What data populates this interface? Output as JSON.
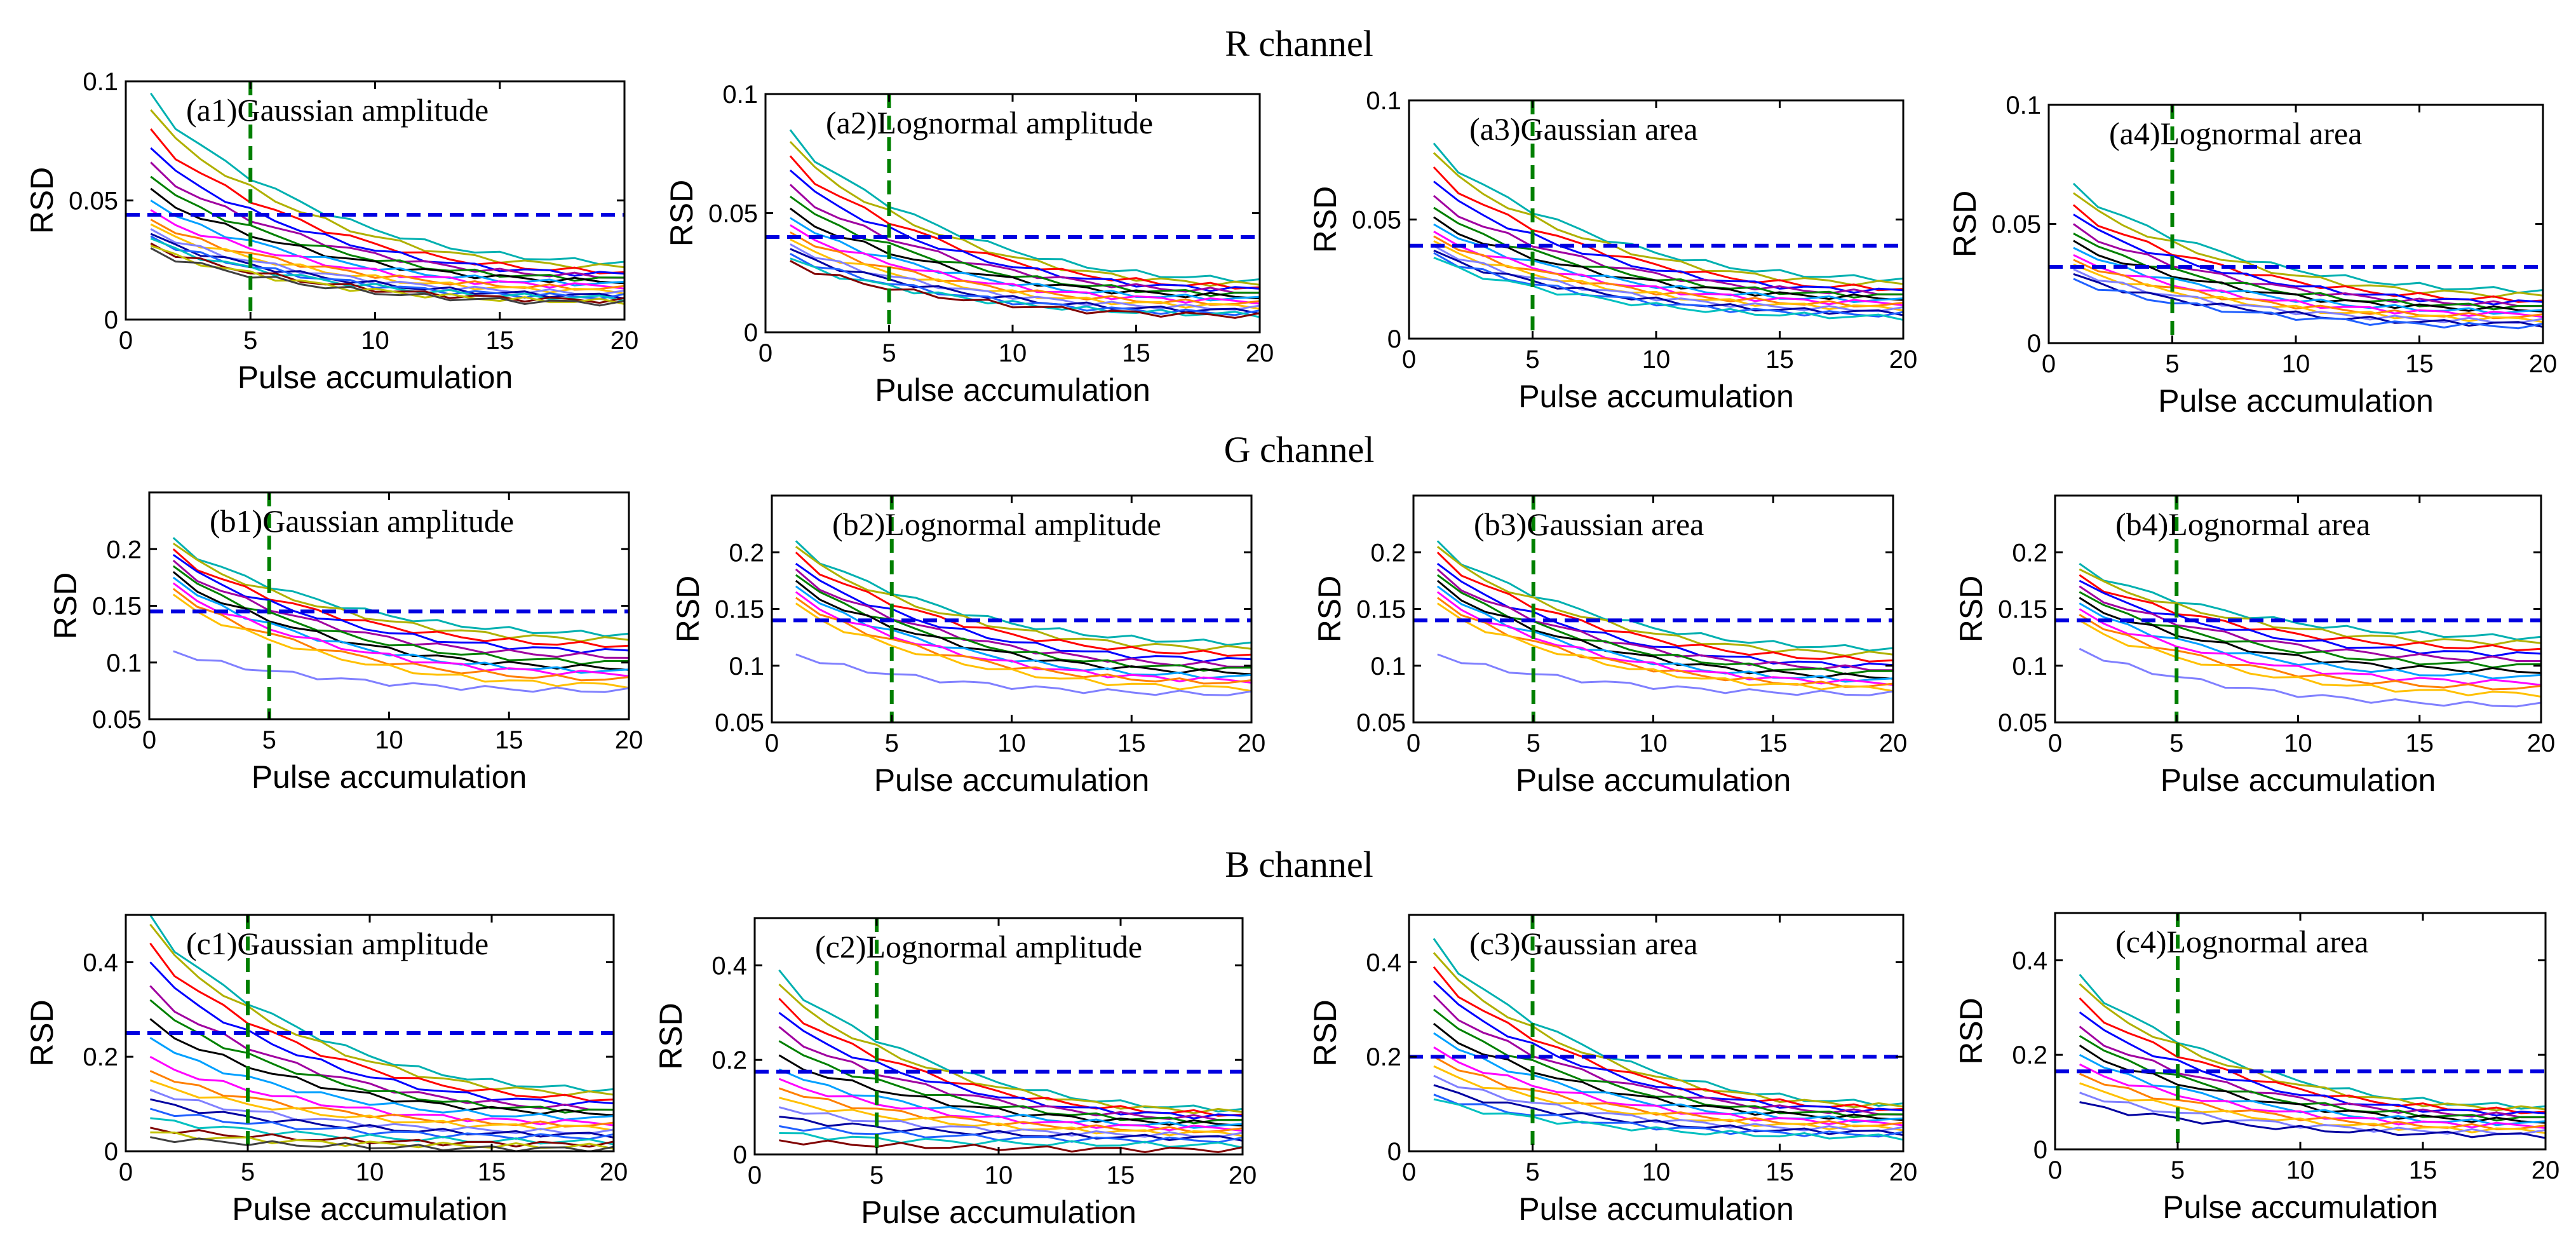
{
  "row_titles": [
    "R channel",
    "G channel",
    "B channel"
  ],
  "chart_data": [
    {
      "type": "line",
      "panel": "a1",
      "label": "(a1)Gaussian amplitude",
      "xlabel": "Pulse accumulation",
      "ylabel": "RSD",
      "xlim": [
        0,
        20
      ],
      "ylim": [
        0,
        0.1
      ],
      "xticks": [
        0,
        5,
        10,
        15,
        20
      ],
      "yticks": [
        0,
        0.05,
        0.1
      ],
      "ytick_labels": [
        "0",
        "0.05",
        "0.1"
      ],
      "threshold_y": 0.044,
      "vline_x": 5,
      "series_start": [
        0.095,
        0.088,
        0.08,
        0.072,
        0.066,
        0.06,
        0.055,
        0.05,
        0.046,
        0.042,
        0.04,
        0.038,
        0.036,
        0.035,
        0.034,
        0.032,
        0.031,
        0.03
      ],
      "series_end": [
        0.024,
        0.022,
        0.02,
        0.019,
        0.018,
        0.017,
        0.016,
        0.015,
        0.014,
        0.013,
        0.012,
        0.011,
        0.01,
        0.0095,
        0.009,
        0.008,
        0.0075,
        0.007
      ]
    },
    {
      "type": "line",
      "panel": "a2",
      "label": "(a2)Lognormal amplitude",
      "xlabel": "Pulse accumulation",
      "ylabel": "RSD",
      "xlim": [
        0,
        20
      ],
      "ylim": [
        0,
        0.1
      ],
      "xticks": [
        0,
        5,
        10,
        15,
        20
      ],
      "yticks": [
        0,
        0.05,
        0.1
      ],
      "ytick_labels": [
        "0",
        "0.05",
        "0.1"
      ],
      "threshold_y": 0.04,
      "vline_x": 5,
      "series_start": [
        0.085,
        0.08,
        0.074,
        0.068,
        0.062,
        0.057,
        0.052,
        0.048,
        0.045,
        0.042,
        0.039,
        0.037,
        0.035,
        0.033,
        0.031,
        0.03
      ],
      "series_end": [
        0.022,
        0.02,
        0.019,
        0.018,
        0.017,
        0.016,
        0.015,
        0.014,
        0.013,
        0.012,
        0.011,
        0.01,
        0.009,
        0.008,
        0.0075,
        0.007
      ]
    },
    {
      "type": "line",
      "panel": "a3",
      "label": "(a3)Gaussian area",
      "xlabel": "Pulse accumulation",
      "ylabel": "RSD",
      "xlim": [
        0,
        20
      ],
      "ylim": [
        0,
        0.1
      ],
      "xticks": [
        0,
        5,
        10,
        15,
        20
      ],
      "yticks": [
        0,
        0.05,
        0.1
      ],
      "ytick_labels": [
        "0",
        "0.05",
        "0.1"
      ],
      "threshold_y": 0.039,
      "vline_x": 5,
      "series_start": [
        0.082,
        0.078,
        0.072,
        0.066,
        0.06,
        0.055,
        0.051,
        0.048,
        0.045,
        0.043,
        0.041,
        0.039,
        0.037,
        0.036,
        0.034
      ],
      "series_end": [
        0.025,
        0.023,
        0.021,
        0.02,
        0.019,
        0.018,
        0.017,
        0.016,
        0.015,
        0.014,
        0.013,
        0.012,
        0.011,
        0.01,
        0.009
      ]
    },
    {
      "type": "line",
      "panel": "a4",
      "label": "(a4)Lognormal area",
      "xlabel": "Pulse accumulation",
      "ylabel": "RSD",
      "xlim": [
        0,
        20
      ],
      "ylim": [
        0,
        0.1
      ],
      "xticks": [
        0,
        5,
        10,
        15,
        20
      ],
      "yticks": [
        0,
        0.05,
        0.1
      ],
      "ytick_labels": [
        "0",
        "0.05",
        "0.1"
      ],
      "threshold_y": 0.032,
      "vline_x": 5,
      "series_start": [
        0.067,
        0.063,
        0.058,
        0.054,
        0.05,
        0.046,
        0.043,
        0.04,
        0.037,
        0.035,
        0.033,
        0.031,
        0.029,
        0.027
      ],
      "series_end": [
        0.022,
        0.02,
        0.018,
        0.017,
        0.016,
        0.015,
        0.014,
        0.013,
        0.012,
        0.011,
        0.01,
        0.009,
        0.008,
        0.007
      ]
    },
    {
      "type": "line",
      "panel": "b1",
      "label": "(b1)Gaussian amplitude",
      "xlabel": "Pulse accumulation",
      "ylabel": "RSD",
      "xlim": [
        0,
        20
      ],
      "ylim": [
        0.05,
        0.25
      ],
      "xticks": [
        0,
        5,
        10,
        15,
        20
      ],
      "yticks": [
        0.05,
        0.1,
        0.15,
        0.2
      ],
      "ytick_labels": [
        "0.05",
        "0.1",
        "0.15",
        "0.2"
      ],
      "threshold_y": 0.145,
      "vline_x": 5,
      "series_start": [
        0.21,
        0.205,
        0.2,
        0.195,
        0.19,
        0.185,
        0.18,
        0.175,
        0.17,
        0.165,
        0.16,
        0.11
      ],
      "series_end": [
        0.125,
        0.12,
        0.115,
        0.11,
        0.105,
        0.1,
        0.095,
        0.092,
        0.09,
        0.085,
        0.08,
        0.075
      ]
    },
    {
      "type": "line",
      "panel": "b2",
      "label": "(b2)Lognormal amplitude",
      "xlabel": "Pulse accumulation",
      "ylabel": "RSD",
      "xlim": [
        0,
        20
      ],
      "ylim": [
        0.05,
        0.25
      ],
      "xticks": [
        0,
        5,
        10,
        15,
        20
      ],
      "yticks": [
        0.05,
        0.1,
        0.15,
        0.2
      ],
      "ytick_labels": [
        "0.05",
        "0.1",
        "0.15",
        "0.2"
      ],
      "threshold_y": 0.14,
      "vline_x": 5,
      "series_start": [
        0.21,
        0.205,
        0.2,
        0.19,
        0.185,
        0.18,
        0.175,
        0.17,
        0.165,
        0.16,
        0.155,
        0.11
      ],
      "series_end": [
        0.12,
        0.115,
        0.11,
        0.105,
        0.1,
        0.097,
        0.094,
        0.09,
        0.087,
        0.085,
        0.08,
        0.075
      ]
    },
    {
      "type": "line",
      "panel": "b3",
      "label": "(b3)Gaussian area",
      "xlabel": "Pulse accumulation",
      "ylabel": "RSD",
      "xlim": [
        0,
        20
      ],
      "ylim": [
        0.05,
        0.25
      ],
      "xticks": [
        0,
        5,
        10,
        15,
        20
      ],
      "yticks": [
        0.05,
        0.1,
        0.15,
        0.2
      ],
      "ytick_labels": [
        "0.05",
        "0.1",
        "0.15",
        "0.2"
      ],
      "threshold_y": 0.14,
      "vline_x": 5,
      "series_start": [
        0.21,
        0.205,
        0.2,
        0.19,
        0.185,
        0.18,
        0.175,
        0.17,
        0.165,
        0.16,
        0.155,
        0.11
      ],
      "series_end": [
        0.115,
        0.11,
        0.105,
        0.1,
        0.097,
        0.094,
        0.09,
        0.087,
        0.085,
        0.082,
        0.08,
        0.075
      ]
    },
    {
      "type": "line",
      "panel": "b4",
      "label": "(b4)Lognormal area",
      "xlabel": "Pulse accumulation",
      "ylabel": "RSD",
      "xlim": [
        0,
        20
      ],
      "ylim": [
        0.05,
        0.25
      ],
      "xticks": [
        0,
        5,
        10,
        15,
        20
      ],
      "yticks": [
        0.05,
        0.1,
        0.15,
        0.2
      ],
      "ytick_labels": [
        "0.05",
        "0.1",
        "0.15",
        "0.2"
      ],
      "threshold_y": 0.14,
      "vline_x": 5,
      "series_start": [
        0.19,
        0.185,
        0.18,
        0.175,
        0.17,
        0.165,
        0.16,
        0.155,
        0.15,
        0.145,
        0.14,
        0.115
      ],
      "series_end": [
        0.125,
        0.12,
        0.115,
        0.11,
        0.105,
        0.1,
        0.095,
        0.09,
        0.085,
        0.08,
        0.075,
        0.065
      ]
    },
    {
      "type": "line",
      "panel": "c1",
      "label": "(c1)Gaussian amplitude",
      "xlabel": "Pulse accumulation",
      "ylabel": "RSD",
      "xlim": [
        0,
        20
      ],
      "ylim": [
        0,
        0.5
      ],
      "xticks": [
        0,
        5,
        10,
        15,
        20
      ],
      "yticks": [
        0,
        0.2,
        0.4
      ],
      "ytick_labels": [
        "0",
        "0.2",
        "0.4"
      ],
      "threshold_y": 0.25,
      "vline_x": 5,
      "series_start": [
        0.5,
        0.48,
        0.44,
        0.4,
        0.35,
        0.32,
        0.28,
        0.24,
        0.2,
        0.17,
        0.15,
        0.13,
        0.11,
        0.09,
        0.07,
        0.05,
        0.04,
        0.03
      ],
      "series_end": [
        0.13,
        0.12,
        0.11,
        0.1,
        0.09,
        0.085,
        0.08,
        0.07,
        0.06,
        0.055,
        0.05,
        0.04,
        0.035,
        0.03,
        0.02,
        0.015,
        0.01,
        0.005
      ]
    },
    {
      "type": "line",
      "panel": "c2",
      "label": "(c2)Lognormal amplitude",
      "xlabel": "Pulse accumulation",
      "ylabel": "RSD",
      "xlim": [
        0,
        20
      ],
      "ylim": [
        0,
        0.5
      ],
      "xticks": [
        0,
        5,
        10,
        15,
        20
      ],
      "yticks": [
        0,
        0.2,
        0.4
      ],
      "ytick_labels": [
        "0",
        "0.2",
        "0.4"
      ],
      "threshold_y": 0.175,
      "vline_x": 5,
      "series_start": [
        0.39,
        0.36,
        0.33,
        0.3,
        0.27,
        0.24,
        0.21,
        0.18,
        0.16,
        0.14,
        0.12,
        0.1,
        0.08,
        0.06,
        0.045,
        0.03
      ],
      "series_end": [
        0.095,
        0.09,
        0.085,
        0.08,
        0.075,
        0.07,
        0.065,
        0.06,
        0.055,
        0.05,
        0.045,
        0.04,
        0.035,
        0.03,
        0.02,
        0.01
      ]
    },
    {
      "type": "line",
      "panel": "c3",
      "label": "(c3)Gaussian area",
      "xlabel": "Pulse accumulation",
      "ylabel": "RSD",
      "xlim": [
        0,
        20
      ],
      "ylim": [
        0,
        0.5
      ],
      "xticks": [
        0,
        5,
        10,
        15,
        20
      ],
      "yticks": [
        0,
        0.2,
        0.4
      ],
      "ytick_labels": [
        "0",
        "0.2",
        "0.4"
      ],
      "threshold_y": 0.2,
      "vline_x": 5,
      "series_start": [
        0.45,
        0.42,
        0.39,
        0.36,
        0.33,
        0.3,
        0.27,
        0.25,
        0.22,
        0.2,
        0.18,
        0.16,
        0.14,
        0.12,
        0.11
      ],
      "series_end": [
        0.1,
        0.095,
        0.09,
        0.085,
        0.08,
        0.075,
        0.07,
        0.065,
        0.06,
        0.055,
        0.05,
        0.045,
        0.04,
        0.035,
        0.03
      ]
    },
    {
      "type": "line",
      "panel": "c4",
      "label": "(c4)Lognormal area",
      "xlabel": "Pulse accumulation",
      "ylabel": "RSD",
      "xlim": [
        0,
        20
      ],
      "ylim": [
        0,
        0.5
      ],
      "xticks": [
        0,
        5,
        10,
        15,
        20
      ],
      "yticks": [
        0,
        0.2,
        0.4
      ],
      "ytick_labels": [
        "0",
        "0.2",
        "0.4"
      ],
      "threshold_y": 0.165,
      "vline_x": 5,
      "series_start": [
        0.37,
        0.35,
        0.32,
        0.29,
        0.26,
        0.24,
        0.22,
        0.2,
        0.18,
        0.16,
        0.14,
        0.12,
        0.1
      ],
      "series_end": [
        0.09,
        0.085,
        0.08,
        0.075,
        0.07,
        0.065,
        0.06,
        0.055,
        0.05,
        0.045,
        0.04,
        0.035,
        0.03
      ]
    }
  ]
}
